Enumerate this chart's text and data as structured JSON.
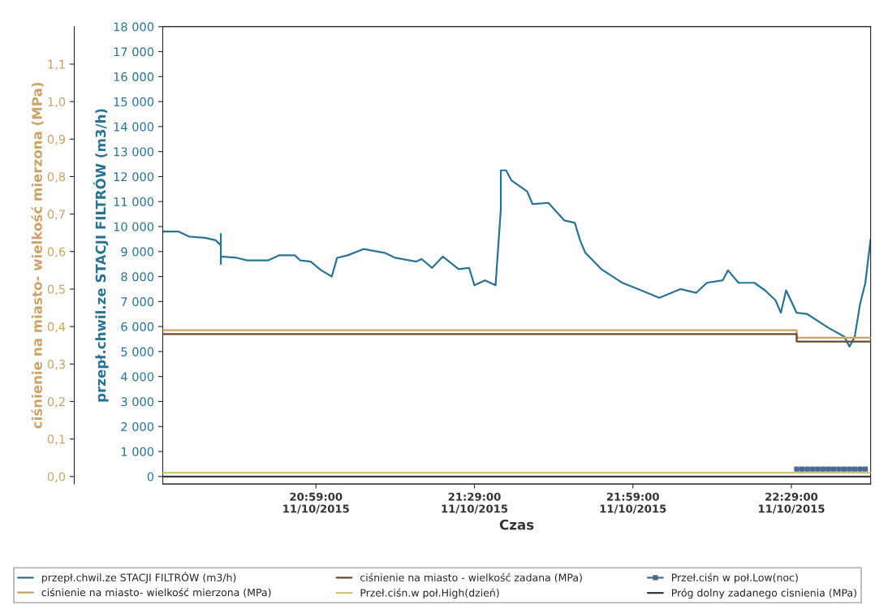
{
  "chart_data": {
    "type": "line",
    "xlabel": "Czas",
    "ylabel": "przepł.chwil.ze STACJI FILTRÓW (m3/h)",
    "y2label": "ciśnienie na miasto- wielkość mierzona (MPa)",
    "xlim": [
      "2015-10-11T20:30",
      "2015-10-11T22:44"
    ],
    "xticks": [
      {
        "value": "2015-10-11T20:59",
        "label": "20:59:00\n11/10/2015"
      },
      {
        "value": "2015-10-11T21:29",
        "label": "21:29:00\n11/10/2015"
      },
      {
        "value": "2015-10-11T21:59",
        "label": "21:59:00\n11/10/2015"
      },
      {
        "value": "2015-10-11T22:29",
        "label": "22:29:00\n11/10/2015"
      }
    ],
    "ylim": [
      -300,
      18000
    ],
    "yticks": [
      {
        "value": 0,
        "label": "0"
      },
      {
        "value": 1000,
        "label": "1 000"
      },
      {
        "value": 2000,
        "label": "2 000"
      },
      {
        "value": 3000,
        "label": "3 000"
      },
      {
        "value": 4000,
        "label": "4 000"
      },
      {
        "value": 5000,
        "label": "5 000"
      },
      {
        "value": 6000,
        "label": "6 000"
      },
      {
        "value": 7000,
        "label": "7 000"
      },
      {
        "value": 8000,
        "label": "8 000"
      },
      {
        "value": 9000,
        "label": "9 000"
      },
      {
        "value": 10000,
        "label": "10 000"
      },
      {
        "value": 11000,
        "label": "11 000"
      },
      {
        "value": 12000,
        "label": "12 000"
      },
      {
        "value": 13000,
        "label": "13 000"
      },
      {
        "value": 14000,
        "label": "14 000"
      },
      {
        "value": 15000,
        "label": "15 000"
      },
      {
        "value": 16000,
        "label": "16 000"
      },
      {
        "value": 17000,
        "label": "17 000"
      },
      {
        "value": 18000,
        "label": "18 000"
      }
    ],
    "y2lim": [
      -0.02,
      1.2
    ],
    "y2ticks": [
      {
        "value": 0,
        "label": "0,0"
      },
      {
        "value": 0.1,
        "label": "0,1"
      },
      {
        "value": 0.2,
        "label": "0,2"
      },
      {
        "value": 0.3,
        "label": "0,3"
      },
      {
        "value": 0.4,
        "label": "0,4"
      },
      {
        "value": 0.5,
        "label": "0,5"
      },
      {
        "value": 0.6,
        "label": "0,6"
      },
      {
        "value": 0.7,
        "label": "0,7"
      },
      {
        "value": 0.8,
        "label": "0,8"
      },
      {
        "value": 0.9,
        "label": "0,9"
      },
      {
        "value": 1.0,
        "label": "1,0"
      },
      {
        "value": 1.1,
        "label": "1,1"
      }
    ],
    "grid": false,
    "legend": "bottom",
    "series": [
      {
        "name": "przepł.chwil.ze STACJI FILTRÓW (m3/h)",
        "color": "#2a7391",
        "x": [
          "2015-10-11T20:30",
          "2015-10-11T20:33",
          "2015-10-11T20:35",
          "2015-10-11T20:38",
          "2015-10-11T20:40",
          "2015-10-11T20:41",
          "2015-10-11T20:41",
          "2015-10-11T20:41",
          "2015-10-11T20:41",
          "2015-10-11T20:44",
          "2015-10-11T20:46",
          "2015-10-11T20:50",
          "2015-10-11T20:52",
          "2015-10-11T20:55",
          "2015-10-11T20:56",
          "2015-10-11T20:58",
          "2015-10-11T21:00",
          "2015-10-11T21:02",
          "2015-10-11T21:03",
          "2015-10-11T21:05",
          "2015-10-11T21:08",
          "2015-10-11T21:12",
          "2015-10-11T21:14",
          "2015-10-11T21:18",
          "2015-10-11T21:19",
          "2015-10-11T21:21",
          "2015-10-11T21:23",
          "2015-10-11T21:26",
          "2015-10-11T21:28",
          "2015-10-11T21:29",
          "2015-10-11T21:31",
          "2015-10-11T21:33",
          "2015-10-11T21:34",
          "2015-10-11T21:34",
          "2015-10-11T21:35",
          "2015-10-11T21:36",
          "2015-10-11T21:39",
          "2015-10-11T21:40",
          "2015-10-11T21:43",
          "2015-10-11T21:46",
          "2015-10-11T21:48",
          "2015-10-11T21:49",
          "2015-10-11T21:50",
          "2015-10-11T21:53",
          "2015-10-11T21:57",
          "2015-10-11T22:00",
          "2015-10-11T22:04",
          "2015-10-11T22:08",
          "2015-10-11T22:11",
          "2015-10-11T22:13",
          "2015-10-11T22:16",
          "2015-10-11T22:17",
          "2015-10-11T22:19",
          "2015-10-11T22:22",
          "2015-10-11T22:24",
          "2015-10-11T22:26",
          "2015-10-11T22:27",
          "2015-10-11T22:28",
          "2015-10-11T22:30",
          "2015-10-11T22:32",
          "2015-10-11T22:36",
          "2015-10-11T22:39",
          "2015-10-11T22:40",
          "2015-10-11T22:41",
          "2015-10-11T22:42",
          "2015-10-11T22:43",
          "2015-10-11T22:44"
        ],
        "values": [
          9800,
          9800,
          9600,
          9550,
          9450,
          9250,
          9700,
          8500,
          8800,
          8750,
          8650,
          8650,
          8850,
          8850,
          8650,
          8600,
          8250,
          8000,
          8750,
          8850,
          9100,
          8950,
          8750,
          8600,
          8700,
          8350,
          8800,
          8300,
          8350,
          7650,
          7850,
          7650,
          10700,
          12250,
          12250,
          11850,
          11400,
          10900,
          10950,
          10250,
          10150,
          9450,
          8950,
          8300,
          7750,
          7500,
          7150,
          7500,
          7350,
          7750,
          7850,
          8250,
          7750,
          7750,
          7450,
          7050,
          6550,
          7450,
          6550,
          6500,
          5950,
          5600,
          5200,
          5600,
          6900,
          7750,
          9500
        ]
      },
      {
        "name": "ciśnienie na miasto- wielkość mierzona (MPa)",
        "axis": "y2",
        "color": "#c9a36a",
        "x": [
          "2015-10-11T20:30",
          "2015-10-11T22:30",
          "2015-10-11T22:30",
          "2015-10-11T22:44"
        ],
        "values": [
          0.39,
          0.39,
          0.37,
          0.37
        ]
      },
      {
        "name": "ciśnienie na miasto - wielkość zadana (MPa)",
        "axis": "y2",
        "color": "#6b4a2e",
        "x": [
          "2015-10-11T20:30",
          "2015-10-11T22:30",
          "2015-10-11T22:30",
          "2015-10-11T22:44"
        ],
        "values": [
          0.38,
          0.38,
          0.36,
          0.36
        ]
      },
      {
        "name": "Przeł.ciśn.w poł.High(dzień)",
        "axis": "y2",
        "color": "#cfc27a",
        "x": [
          "2015-10-11T20:30",
          "2015-10-11T22:44"
        ],
        "values": [
          0.01,
          0.01
        ]
      },
      {
        "name": "Przeł.ciśn w poł.Low(noc)",
        "axis": "y2",
        "marker": "square",
        "color": "#4a6a8a",
        "x": [
          "2015-10-11T22:30",
          "2015-10-11T22:31",
          "2015-10-11T22:32",
          "2015-10-11T22:33",
          "2015-10-11T22:34",
          "2015-10-11T22:35",
          "2015-10-11T22:36",
          "2015-10-11T22:37",
          "2015-10-11T22:38",
          "2015-10-11T22:39",
          "2015-10-11T22:40",
          "2015-10-11T22:41",
          "2015-10-11T22:42",
          "2015-10-11T22:43"
        ],
        "values": [
          0.02,
          0.02,
          0.02,
          0.02,
          0.02,
          0.02,
          0.02,
          0.02,
          0.02,
          0.02,
          0.02,
          0.02,
          0.02,
          0.02
        ]
      },
      {
        "name": "Próg dolny zadanego cisnienia (MPa)",
        "axis": "y2",
        "color": "#3a3a3a",
        "x": [
          "2015-10-11T20:30",
          "2015-10-11T22:44"
        ],
        "values": [
          0.0,
          0.0
        ]
      }
    ]
  }
}
